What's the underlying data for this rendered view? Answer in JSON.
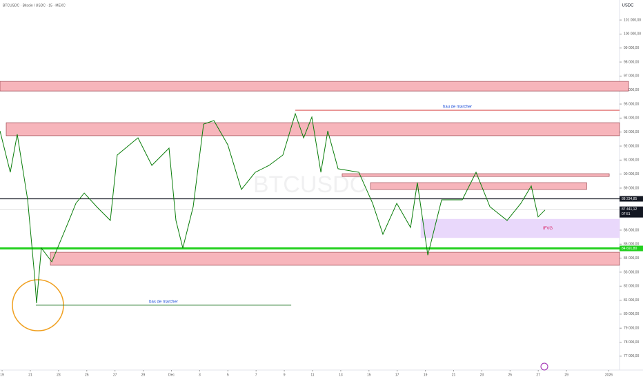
{
  "chart_data": {
    "type": "line",
    "title": "BTCUSDC · Bitcoin / USDC · 15 · MEXC",
    "watermark": "BTCUSDC",
    "y_axis_label": "USDC",
    "xlim": [
      -0.15,
      43.76
    ],
    "ylim": [
      76010,
      102430
    ],
    "xticks": [
      {
        "value": 0,
        "label": "19"
      },
      {
        "value": 2,
        "label": "21"
      },
      {
        "value": 4,
        "label": "23"
      },
      {
        "value": 6,
        "label": "25"
      },
      {
        "value": 8,
        "label": "27"
      },
      {
        "value": 10,
        "label": "29"
      },
      {
        "value": 12,
        "label": "Dec"
      },
      {
        "value": 14,
        "label": "3"
      },
      {
        "value": 16,
        "label": "5"
      },
      {
        "value": 18,
        "label": "7"
      },
      {
        "value": 20,
        "label": "9"
      },
      {
        "value": 22,
        "label": "11"
      },
      {
        "value": 24,
        "label": "13"
      },
      {
        "value": 26,
        "label": "15"
      },
      {
        "value": 28,
        "label": "17"
      },
      {
        "value": 30,
        "label": "19"
      },
      {
        "value": 32,
        "label": "21"
      },
      {
        "value": 34,
        "label": "23"
      },
      {
        "value": 36,
        "label": "25"
      },
      {
        "value": 38,
        "label": "27"
      },
      {
        "value": 40,
        "label": "29"
      },
      {
        "value": 43,
        "label": "2026"
      }
    ],
    "yticks": [
      {
        "value": 77000,
        "label": "77 000,00"
      },
      {
        "value": 78000,
        "label": "78 000,00"
      },
      {
        "value": 79000,
        "label": "79 000,00"
      },
      {
        "value": 80000,
        "label": "80 000,00"
      },
      {
        "value": 81000,
        "label": "81 000,00"
      },
      {
        "value": 82000,
        "label": "82 000,00"
      },
      {
        "value": 83000,
        "label": "83 000,00"
      },
      {
        "value": 84000,
        "label": "84 000,00"
      },
      {
        "value": 85000,
        "label": "85 000,00"
      },
      {
        "value": 86000,
        "label": "86 000,00"
      },
      {
        "value": 89000,
        "label": "89 000,00"
      },
      {
        "value": 90000,
        "label": "90 000,00"
      },
      {
        "value": 91000,
        "label": "91 000,00"
      },
      {
        "value": 92000,
        "label": "92 000,00"
      },
      {
        "value": 93000,
        "label": "93 000,00"
      },
      {
        "value": 94000,
        "label": "94 000,00"
      },
      {
        "value": 95000,
        "label": "95 000,00"
      },
      {
        "value": 96000,
        "label": "96 000,00"
      },
      {
        "value": 97000,
        "label": "97 000,00"
      },
      {
        "value": 98000,
        "label": "98 000,00"
      },
      {
        "value": 99000,
        "label": "99 000,00"
      },
      {
        "value": 100000,
        "label": "100 000,00"
      },
      {
        "value": 101000,
        "label": "101 000,00"
      }
    ],
    "series": [
      {
        "name": "BTCUSDC",
        "color": "#0a7d0a",
        "x": [
          -0.15,
          0.58,
          1.07,
          1.81,
          2.3,
          2.44,
          2.78,
          3.52,
          4.74,
          5.23,
          5.82,
          6.7,
          7.67,
          8.16,
          9.63,
          10.61,
          11.83,
          12.32,
          12.81,
          13.54,
          14.28,
          15.01,
          15.99,
          16.96,
          17.94,
          18.92,
          19.9,
          20.78,
          21.37,
          21.95,
          22.59,
          23.08,
          23.81,
          25.28,
          26.26,
          26.99,
          27.97,
          28.95,
          29.43,
          30.17,
          31.15,
          32.61,
          33.59,
          34.57,
          35.79,
          36.77,
          37.5,
          37.99,
          38.48
        ],
        "values": [
          93080,
          90130,
          92840,
          88160,
          82750,
          80780,
          84720,
          83740,
          86690,
          87910,
          88650,
          87670,
          86690,
          91360,
          92590,
          90620,
          91850,
          86690,
          84720,
          87670,
          93570,
          93820,
          92100,
          88900,
          90130,
          90620,
          91360,
          94310,
          92590,
          94070,
          90130,
          93080,
          90380,
          90130,
          87910,
          85700,
          87910,
          86190,
          89390,
          84210,
          88160,
          88160,
          90130,
          87670,
          86690,
          87910,
          89150,
          86940,
          87440
        ]
      }
    ],
    "zones": [
      {
        "x": [
          -0.15,
          44.4
        ],
        "y": [
          95930,
          96620
        ],
        "color": "#f7b5bb",
        "border": "#8c2f39"
      },
      {
        "x": [
          0.29,
          43.76
        ],
        "y": [
          92740,
          93670
        ],
        "color": "#f7b5bb",
        "border": "#8c2f39"
      },
      {
        "x": [
          24.1,
          43.03
        ],
        "y": [
          89830,
          90030
        ],
        "color": "#f7b5bb",
        "border": "#8c2f39"
      },
      {
        "x": [
          26.11,
          41.43
        ],
        "y": [
          88900,
          89390
        ],
        "color": "#f7b5bb",
        "border": "#8c2f39"
      },
      {
        "x": [
          3.42,
          43.76
        ],
        "y": [
          83490,
          84420
        ],
        "color": "#f7b5bb",
        "border": "#8c2f39"
      },
      {
        "x": [
          29.68,
          43.76
        ],
        "y": [
          85460,
          86780
        ],
        "color": "#e9d8fb",
        "border": "#e9d8fb",
        "label": "IFVG",
        "label_color": "#d81b60"
      }
    ],
    "levels": [
      {
        "x": [
          20.78,
          43.76
        ],
        "value": 94556,
        "color": "#d32f2f",
        "label": "hau de marcher",
        "label_color": "#1e4fd8"
      },
      {
        "x": [
          2.39,
          20.49
        ],
        "value": 80640,
        "color": "#2e7d32",
        "label": "bas de marcher",
        "label_color": "#1e4fd8"
      }
    ],
    "price_lines": [
      {
        "value": 88234.85,
        "label": "88 234,85",
        "color": "#131722",
        "width": 1.2
      },
      {
        "value": 84691.8,
        "label": "84 691,80",
        "color": "#22d01e",
        "width": 3
      }
    ],
    "last_price": {
      "value": 87441.12,
      "label": "87 441,12",
      "countdown": "07:51",
      "color": "#131722"
    }
  }
}
